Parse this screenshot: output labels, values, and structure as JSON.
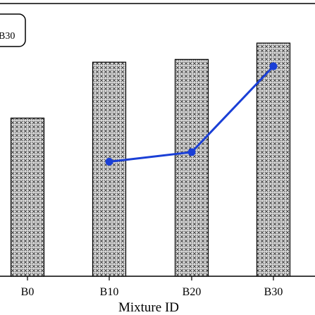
{
  "chart_data": {
    "type": "bar",
    "xlabel": "Mixture ID",
    "categories": [
      "B0",
      "B10",
      "B20",
      "B30"
    ],
    "bar_series": {
      "values": [
        0.58,
        0.785,
        0.795,
        0.855
      ],
      "pattern": "crosshatch",
      "color": "#3a3a3a"
    },
    "line_series": {
      "x": [
        "B10",
        "B20",
        "B30"
      ],
      "values": [
        0.42,
        0.455,
        0.77
      ],
      "color": "#1a3fd6"
    },
    "legend_fragment": "B30",
    "ylim": [
      0,
      1
    ],
    "grid": false
  }
}
